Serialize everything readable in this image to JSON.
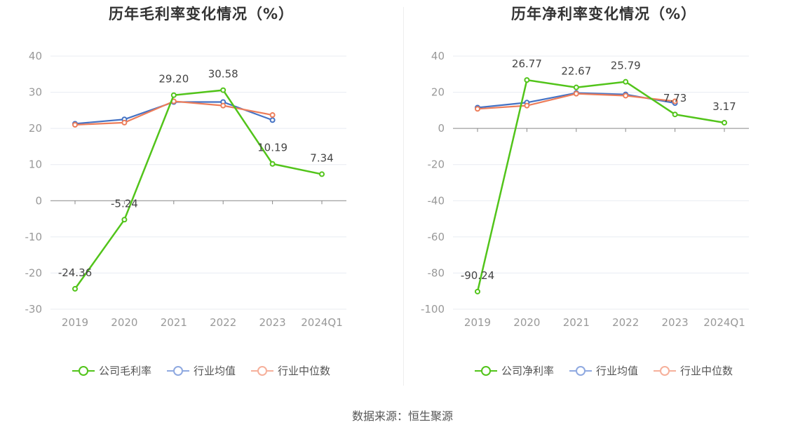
{
  "source": "数据来源：恒生聚源",
  "colors": {
    "company": "#52c41a",
    "industry_avg": "#4472c4",
    "industry_median": "#ed7d5a",
    "grid": "#e8ebf2",
    "axis": "#888888",
    "tick_text": "#999999",
    "label_text": "#444444"
  },
  "legend_colors": {
    "company": "#52c41a",
    "industry_avg": "#8fa9e0",
    "industry_median": "#f6b09b"
  },
  "chart_data": [
    {
      "type": "line",
      "title": "历年毛利率变化情况（%）",
      "categories": [
        "2019",
        "2020",
        "2021",
        "2022",
        "2023",
        "2024Q1"
      ],
      "ylim": [
        -30,
        40
      ],
      "yticks": [
        40,
        30,
        20,
        10,
        0,
        -10,
        -20,
        -30
      ],
      "ytick_labels": [
        "40",
        "30",
        "20",
        "10",
        "0",
        "-10",
        "-20",
        "-30"
      ],
      "grid": true,
      "legend_position": "bottom",
      "series": [
        {
          "name": "公司毛利率",
          "key": "company",
          "values": [
            -24.36,
            -5.24,
            29.2,
            30.58,
            10.19,
            7.34
          ],
          "labels": [
            "-24.36",
            "-5.24",
            "29.20",
            "30.58",
            "10.19",
            "7.34"
          ]
        },
        {
          "name": "行业均值",
          "key": "industry_avg",
          "values": [
            21.3,
            22.5,
            27.3,
            27.3,
            22.3,
            null
          ]
        },
        {
          "name": "行业中位数",
          "key": "industry_median",
          "values": [
            21.0,
            21.6,
            27.5,
            26.3,
            23.7,
            null
          ]
        }
      ]
    },
    {
      "type": "line",
      "title": "历年净利率变化情况（%）",
      "categories": [
        "2019",
        "2020",
        "2021",
        "2022",
        "2023",
        "2024Q1"
      ],
      "ylim": [
        -100,
        40
      ],
      "yticks": [
        40,
        20,
        0,
        -20,
        -40,
        -60,
        -80,
        -100
      ],
      "ytick_labels": [
        "40",
        "20",
        "0",
        "-20",
        "-40",
        "-60",
        "-80",
        "-100"
      ],
      "grid": true,
      "legend_position": "bottom",
      "series": [
        {
          "name": "公司净利率",
          "key": "company",
          "values": [
            -90.24,
            26.77,
            22.67,
            25.79,
            7.73,
            3.17
          ],
          "labels": [
            "-90.24",
            "26.77",
            "22.67",
            "25.79",
            "7.73",
            "3.17"
          ]
        },
        {
          "name": "行业均值",
          "key": "industry_avg",
          "values": [
            11.5,
            14.3,
            19.6,
            18.8,
            14.0,
            null
          ]
        },
        {
          "name": "行业中位数",
          "key": "industry_median",
          "values": [
            10.8,
            12.6,
            19.2,
            18.1,
            15.0,
            null
          ]
        }
      ]
    }
  ]
}
